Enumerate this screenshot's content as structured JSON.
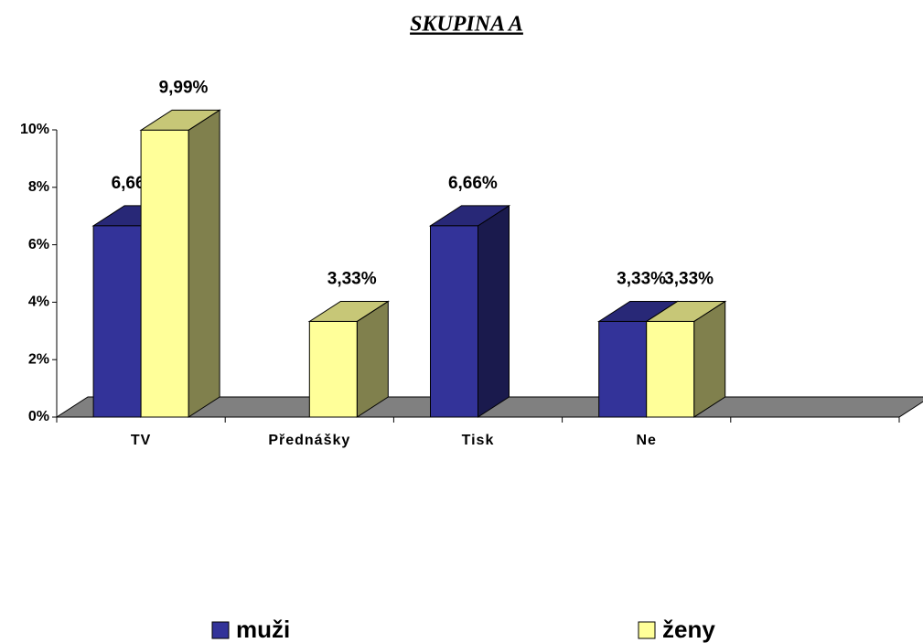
{
  "chart_data": {
    "type": "bar3d",
    "title": "SKUPINA A",
    "categories": [
      "TV",
      "Přednášky",
      "Tisk",
      "Ne",
      null
    ],
    "series": [
      {
        "name": "muži",
        "color": "#333399",
        "values": [
          6.66,
          null,
          6.66,
          3.33,
          null
        ],
        "value_labels": [
          "6,66%",
          null,
          "6,66%",
          "3,33%",
          null
        ]
      },
      {
        "name": "ženy",
        "color": "#ffff99",
        "values": [
          9.99,
          3.33,
          null,
          3.33,
          null
        ],
        "value_labels": [
          "9,99%",
          "3,33%",
          null,
          "3,33%",
          null
        ]
      }
    ],
    "ylim": [
      0,
      10
    ],
    "yticks": [
      {
        "value": 0,
        "label": "0%"
      },
      {
        "value": 2,
        "label": "2%"
      },
      {
        "value": 4,
        "label": "4%"
      },
      {
        "value": 6,
        "label": "6%"
      },
      {
        "value": 8,
        "label": "8%"
      },
      {
        "value": 10,
        "label": "10%"
      }
    ],
    "legend": "bottom"
  }
}
